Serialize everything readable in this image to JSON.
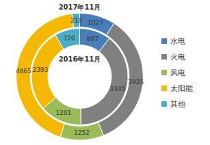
{
  "chart_data": {
    "type": "pie",
    "categories": [
      "水电",
      "火电",
      "风电",
      "太阳能",
      "其他"
    ],
    "colors": [
      "#4a7ebb",
      "#808080",
      "#9bbb59",
      "#f5b800",
      "#4bacc6"
    ],
    "series": [
      {
        "name": "2016年11月",
        "values": [
          897,
          3345,
          1201,
          2393,
          720
        ]
      },
      {
        "name": "2017年11月",
        "values": [
          1027,
          3925,
          1252,
          4865,
          218
        ]
      }
    ],
    "data_labels": true,
    "legend": "right"
  }
}
